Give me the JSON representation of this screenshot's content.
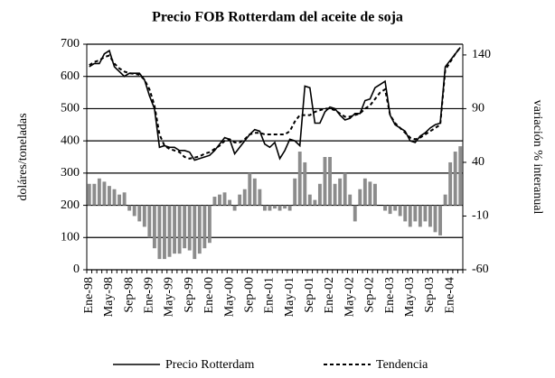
{
  "chart_data": {
    "type": "combo",
    "title": "Precio FOB Rotterdam del aceite de soja",
    "y_label": "doláres/toneladas",
    "y2_label": "variación % interanual",
    "categories": [
      "Ene-98",
      null,
      null,
      null,
      "May-98",
      null,
      null,
      null,
      "Sep-98",
      null,
      null,
      null,
      "Ene-99",
      null,
      null,
      null,
      "May-99",
      null,
      null,
      null,
      "Sep-99",
      null,
      null,
      null,
      "Ene-00",
      null,
      null,
      null,
      "May-00",
      null,
      null,
      null,
      "Sep-00",
      null,
      null,
      null,
      "Ene-01",
      null,
      null,
      null,
      "May-01",
      null,
      null,
      null,
      "Sep-01",
      null,
      null,
      null,
      "Ene-02",
      null,
      null,
      null,
      "May-02",
      null,
      null,
      null,
      "Sep-02",
      null,
      null,
      null,
      "Ene-03",
      null,
      null,
      null,
      "May-03",
      null,
      null,
      null,
      "Sep-03",
      null,
      null,
      null,
      "Ene-04",
      null,
      null
    ],
    "series": [
      {
        "type": "bar",
        "axis": "y2",
        "color": "#8c8c8c",
        "values": [
          20,
          20,
          25,
          22,
          18,
          15,
          10,
          12,
          -5,
          -10,
          -15,
          -20,
          -30,
          -40,
          -50,
          -50,
          -48,
          -45,
          -45,
          -40,
          -42,
          -50,
          -45,
          -40,
          -35,
          8,
          10,
          12,
          5,
          -5,
          10,
          15,
          30,
          25,
          15,
          -5,
          -5,
          -3,
          -5,
          -3,
          -5,
          25,
          50,
          40,
          10,
          5,
          20,
          45,
          45,
          20,
          25,
          30,
          10,
          -15,
          15,
          25,
          22,
          20,
          0,
          -5,
          -8,
          -5,
          -10,
          -15,
          -20,
          -15,
          -20,
          -15,
          -20,
          -25,
          -28,
          10,
          40,
          50,
          55
        ]
      },
      {
        "type": "line",
        "name": "Precio Rotterdam",
        "color": "#000000",
        "dash": false,
        "values": [
          630,
          640,
          640,
          670,
          680,
          630,
          615,
          600,
          610,
          610,
          610,
          590,
          540,
          500,
          380,
          385,
          380,
          380,
          370,
          370,
          365,
          340,
          345,
          350,
          355,
          370,
          390,
          410,
          405,
          360,
          380,
          400,
          420,
          435,
          430,
          390,
          380,
          395,
          345,
          370,
          405,
          400,
          385,
          570,
          565,
          455,
          455,
          490,
          505,
          500,
          480,
          465,
          470,
          485,
          485,
          525,
          530,
          565,
          575,
          585,
          480,
          450,
          440,
          430,
          400,
          395,
          415,
          425,
          440,
          450,
          455,
          630,
          650,
          670,
          690
        ]
      },
      {
        "type": "line",
        "name": "Tendencia",
        "color": "#000000",
        "dash": true,
        "values": [
          635,
          645,
          650,
          660,
          665,
          640,
          625,
          615,
          610,
          608,
          605,
          590,
          560,
          510,
          420,
          385,
          375,
          370,
          365,
          350,
          345,
          348,
          352,
          360,
          365,
          375,
          385,
          400,
          405,
          395,
          395,
          405,
          420,
          425,
          425,
          420,
          420,
          420,
          420,
          420,
          430,
          460,
          480,
          480,
          480,
          490,
          495,
          500,
          500,
          495,
          485,
          475,
          475,
          480,
          485,
          500,
          510,
          530,
          550,
          560,
          480,
          455,
          440,
          425,
          410,
          405,
          410,
          420,
          430,
          440,
          450,
          620,
          645,
          670,
          690
        ]
      }
    ],
    "ylim": [
      0,
      700
    ],
    "yticks": [
      0,
      100,
      200,
      300,
      400,
      500,
      600,
      700
    ],
    "y2lim": [
      -60,
      150
    ],
    "y2ticks": [
      -60,
      -10,
      40,
      90,
      140
    ],
    "grid": true
  }
}
